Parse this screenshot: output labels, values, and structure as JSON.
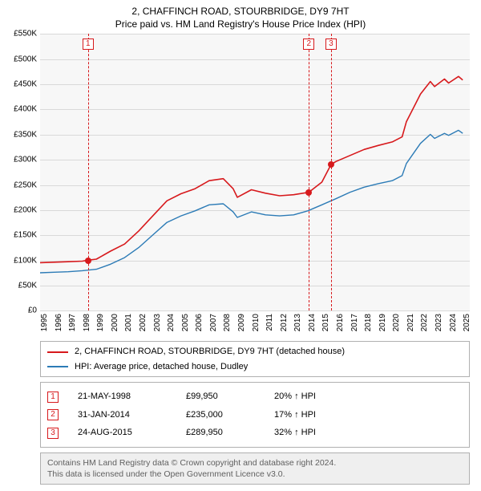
{
  "title": {
    "line1": "2, CHAFFINCH ROAD, STOURBRIDGE, DY9 7HT",
    "line2": "Price paid vs. HM Land Registry's House Price Index (HPI)"
  },
  "chart": {
    "type": "line",
    "background_color": "#f7f7f7",
    "grid_color": "#d9d9d9",
    "axis_fontsize": 10,
    "xlim": [
      1995,
      2025.5
    ],
    "ylim": [
      0,
      550000
    ],
    "ytick_step": 50000,
    "yticks": [
      "£0",
      "£50K",
      "£100K",
      "£150K",
      "£200K",
      "£250K",
      "£300K",
      "£350K",
      "£400K",
      "£450K",
      "£500K",
      "£550K"
    ],
    "xticks": [
      1995,
      1996,
      1997,
      1998,
      1999,
      2000,
      2001,
      2002,
      2003,
      2004,
      2005,
      2006,
      2007,
      2008,
      2009,
      2010,
      2011,
      2012,
      2013,
      2014,
      2015,
      2016,
      2017,
      2018,
      2019,
      2020,
      2021,
      2022,
      2023,
      2024,
      2025
    ],
    "series": [
      {
        "name": "property",
        "label": "2, CHAFFINCH ROAD, STOURBRIDGE, DY9 7HT (detached house)",
        "color": "#d7191c",
        "line_width": 1.6,
        "points": [
          [
            1995,
            95000
          ],
          [
            1996,
            96000
          ],
          [
            1997,
            97000
          ],
          [
            1998,
            98000
          ],
          [
            1998.4,
            99950
          ],
          [
            1999,
            102000
          ],
          [
            2000,
            118000
          ],
          [
            2001,
            132000
          ],
          [
            2002,
            158000
          ],
          [
            2003,
            188000
          ],
          [
            2004,
            218000
          ],
          [
            2005,
            232000
          ],
          [
            2006,
            242000
          ],
          [
            2007,
            258000
          ],
          [
            2008,
            262000
          ],
          [
            2008.7,
            242000
          ],
          [
            2009,
            225000
          ],
          [
            2010,
            240000
          ],
          [
            2011,
            233000
          ],
          [
            2012,
            228000
          ],
          [
            2013,
            230000
          ],
          [
            2014.08,
            235000
          ],
          [
            2015,
            255000
          ],
          [
            2015.65,
            289950
          ],
          [
            2016,
            296000
          ],
          [
            2017,
            308000
          ],
          [
            2018,
            320000
          ],
          [
            2019,
            328000
          ],
          [
            2020,
            335000
          ],
          [
            2020.7,
            345000
          ],
          [
            2021,
            375000
          ],
          [
            2022,
            430000
          ],
          [
            2022.7,
            455000
          ],
          [
            2023,
            445000
          ],
          [
            2023.7,
            460000
          ],
          [
            2024,
            452000
          ],
          [
            2024.7,
            465000
          ],
          [
            2025,
            458000
          ]
        ]
      },
      {
        "name": "hpi",
        "label": "HPI: Average price, detached house, Dudley",
        "color": "#2c7bb6",
        "line_width": 1.4,
        "points": [
          [
            1995,
            75000
          ],
          [
            1996,
            76000
          ],
          [
            1997,
            77000
          ],
          [
            1998,
            79000
          ],
          [
            1999,
            82000
          ],
          [
            2000,
            92000
          ],
          [
            2001,
            105000
          ],
          [
            2002,
            125000
          ],
          [
            2003,
            150000
          ],
          [
            2004,
            175000
          ],
          [
            2005,
            188000
          ],
          [
            2006,
            198000
          ],
          [
            2007,
            210000
          ],
          [
            2008,
            212000
          ],
          [
            2008.7,
            196000
          ],
          [
            2009,
            185000
          ],
          [
            2010,
            196000
          ],
          [
            2011,
            190000
          ],
          [
            2012,
            188000
          ],
          [
            2013,
            190000
          ],
          [
            2014,
            198000
          ],
          [
            2015,
            210000
          ],
          [
            2016,
            222000
          ],
          [
            2017,
            235000
          ],
          [
            2018,
            245000
          ],
          [
            2019,
            252000
          ],
          [
            2020,
            258000
          ],
          [
            2020.7,
            268000
          ],
          [
            2021,
            292000
          ],
          [
            2022,
            332000
          ],
          [
            2022.7,
            350000
          ],
          [
            2023,
            342000
          ],
          [
            2023.7,
            352000
          ],
          [
            2024,
            348000
          ],
          [
            2024.7,
            358000
          ],
          [
            2025,
            352000
          ]
        ]
      }
    ],
    "sale_markers": [
      {
        "id": "1",
        "x": 1998.4,
        "y": 99950,
        "color": "#d7191c"
      },
      {
        "id": "2",
        "x": 2014.08,
        "y": 235000,
        "color": "#d7191c"
      },
      {
        "id": "3",
        "x": 2015.65,
        "y": 289950,
        "color": "#d7191c"
      }
    ]
  },
  "legend": [
    {
      "color": "#d7191c",
      "label": "2, CHAFFINCH ROAD, STOURBRIDGE, DY9 7HT (detached house)"
    },
    {
      "color": "#2c7bb6",
      "label": "HPI: Average price, detached house, Dudley"
    }
  ],
  "events": [
    {
      "id": "1",
      "color": "#d7191c",
      "date": "21-MAY-1998",
      "price": "£99,950",
      "delta": "20% ↑ HPI"
    },
    {
      "id": "2",
      "color": "#d7191c",
      "date": "31-JAN-2014",
      "price": "£235,000",
      "delta": "17% ↑ HPI"
    },
    {
      "id": "3",
      "color": "#d7191c",
      "date": "24-AUG-2015",
      "price": "£289,950",
      "delta": "32% ↑ HPI"
    }
  ],
  "license": {
    "line1": "Contains HM Land Registry data © Crown copyright and database right 2024.",
    "line2": "This data is licensed under the Open Government Licence v3.0."
  }
}
